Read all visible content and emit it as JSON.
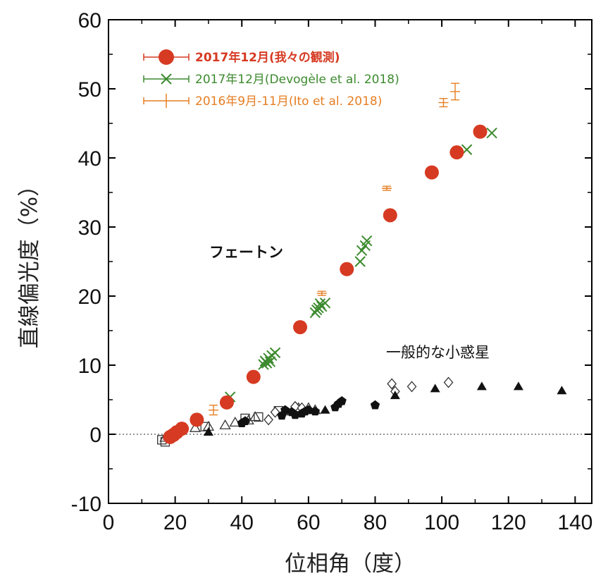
{
  "chart_data": {
    "type": "scatter",
    "xlabel": "位相角（度）",
    "ylabel": "直線偏光度（%）",
    "xlim": [
      0,
      145
    ],
    "ylim": [
      -10,
      60
    ],
    "x_ticks": [
      "0",
      "20",
      "40",
      "60",
      "80",
      "100",
      "120",
      "140"
    ],
    "y_ticks": [
      "-10",
      "0",
      "10",
      "20",
      "30",
      "40",
      "50",
      "60"
    ],
    "zero_line": "dotted",
    "legend_position": "top-left",
    "annotations": [
      {
        "text": "フェートン",
        "x": 36,
        "y": 26
      },
      {
        "text": "一般的な小惑星",
        "x": 87,
        "y": 11
      }
    ],
    "series": [
      {
        "name": "2017年12月(我々の観測)",
        "color": "#d63a22",
        "marker": "filled-circle",
        "points": [
          [
            18.5,
            -0.4
          ],
          [
            19.5,
            -0.1
          ],
          [
            20.5,
            0.3
          ],
          [
            22,
            0.8
          ],
          [
            26.5,
            2.1
          ],
          [
            35.5,
            4.6
          ],
          [
            43.5,
            8.3
          ],
          [
            57.5,
            15.5
          ],
          [
            71.5,
            23.9
          ],
          [
            84.5,
            31.7
          ],
          [
            97,
            37.9
          ],
          [
            104.5,
            40.8
          ],
          [
            111.5,
            43.8
          ]
        ]
      },
      {
        "name": "2017年12月(Devogèle et al. 2018)",
        "color": "#3c8a2e",
        "marker": "x",
        "points": [
          [
            36.5,
            5.4
          ],
          [
            46.5,
            10.1
          ],
          [
            47,
            10.6
          ],
          [
            47.5,
            10.3
          ],
          [
            48,
            11
          ],
          [
            48.5,
            10.5
          ],
          [
            49,
            11.4
          ],
          [
            50,
            11.8
          ],
          [
            62,
            17.6
          ],
          [
            62.5,
            18
          ],
          [
            63,
            18.3
          ],
          [
            63.5,
            18.9
          ],
          [
            64,
            18.5
          ],
          [
            65,
            19
          ],
          [
            75.5,
            25
          ],
          [
            76,
            26.6
          ],
          [
            77,
            27.3
          ],
          [
            77.5,
            28
          ],
          [
            107.5,
            41.2
          ],
          [
            115,
            43.6
          ]
        ]
      },
      {
        "name": "2016年9月-11月(Ito et al. 2018)",
        "color": "#e67e22",
        "marker": "errorbar",
        "points": [
          [
            31.5,
            3.5,
            0.7
          ],
          [
            58,
            15.6,
            0.3
          ],
          [
            64,
            20.4,
            0.3
          ],
          [
            83.5,
            35.6,
            0.3
          ],
          [
            100.5,
            48,
            0.6
          ],
          [
            104,
            49.6,
            1.2
          ]
        ]
      },
      {
        "name": "一般的な小惑星 (filled triangles)",
        "color": "#111111",
        "marker": "filled-triangle",
        "points": [
          [
            30,
            0.3
          ],
          [
            65,
            3.5
          ],
          [
            86,
            5.6
          ],
          [
            98,
            6.6
          ],
          [
            112,
            6.9
          ],
          [
            123,
            6.9
          ],
          [
            136,
            6.3
          ]
        ]
      },
      {
        "name": "一般的な小惑星 (filled pentagons)",
        "color": "#111111",
        "marker": "filled-pentagon",
        "points": [
          [
            40,
            1.6
          ],
          [
            41,
            1.9
          ],
          [
            52,
            2.7
          ],
          [
            53,
            3.5
          ],
          [
            55,
            3.2
          ],
          [
            56,
            2.8
          ],
          [
            58,
            3
          ],
          [
            59,
            3.3
          ],
          [
            60,
            3.5
          ],
          [
            62,
            3.3
          ],
          [
            68,
            3.9
          ],
          [
            69,
            4.4
          ],
          [
            70,
            4.8
          ],
          [
            80,
            4.2
          ]
        ]
      },
      {
        "name": "一般的な小惑星 (open diamonds)",
        "color": "#333333",
        "marker": "open-diamond",
        "points": [
          [
            48,
            2.1
          ],
          [
            50,
            3.2
          ],
          [
            56,
            4
          ],
          [
            58,
            3.8
          ],
          [
            85,
            7.3
          ],
          [
            86,
            6.2
          ],
          [
            91,
            6.9
          ],
          [
            102,
            7.5
          ]
        ]
      },
      {
        "name": "一般的な小惑星 (open squares)",
        "color": "#333333",
        "marker": "open-square",
        "points": [
          [
            16,
            -0.8
          ],
          [
            17,
            -1.1
          ],
          [
            29,
            1.1
          ],
          [
            41,
            2.3
          ],
          [
            45,
            2.5
          ],
          [
            51,
            3.4
          ]
        ]
      },
      {
        "name": "一般的な小惑星 (open triangles)",
        "color": "#333333",
        "marker": "open-triangle",
        "points": [
          [
            17,
            -0.5
          ],
          [
            18,
            -0.2
          ],
          [
            26,
            0.9
          ],
          [
            30,
            1.1
          ],
          [
            35,
            1.3
          ],
          [
            38,
            1.7
          ],
          [
            42,
            2
          ],
          [
            44,
            2.5
          ],
          [
            55,
            3.3
          ],
          [
            57,
            3.8
          ],
          [
            60,
            3.8
          ],
          [
            62,
            3.5
          ]
        ]
      }
    ],
    "legend": [
      "2017年12月(我々の観測)",
      "2017年12月(Devogèle et al. 2018)",
      "2016年9月-11月(Ito et al. 2018)"
    ]
  }
}
